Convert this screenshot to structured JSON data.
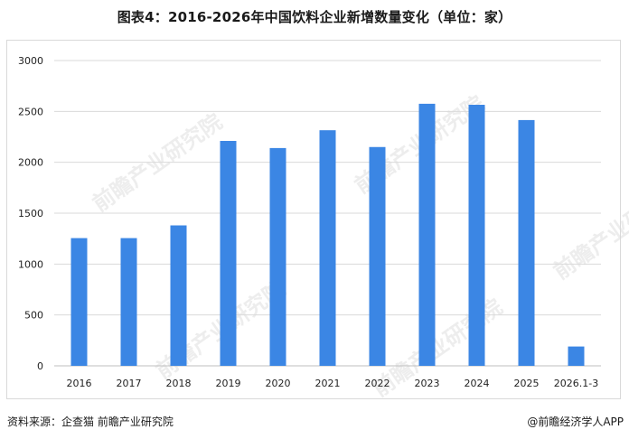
{
  "title": "图表4：2016-2026年中国饮料企业新增数量变化（单位：家）",
  "source": "资料来源：企查猫 前瞻产业研究院",
  "credit": "@前瞻经济学人APP",
  "watermark": "前瞻产业研究院",
  "colors": {
    "bar": "#3b86e4",
    "grid": "#d9d9d9",
    "axis": "#bfbfbf"
  },
  "chart_data": {
    "type": "bar",
    "title": "图表4：2016-2026年中国饮料企业新增数量变化（单位：家）",
    "categories": [
      "2016",
      "2017",
      "2018",
      "2019",
      "2020",
      "2021",
      "2022",
      "2023",
      "2024",
      "2025",
      "2026.1-3"
    ],
    "values": [
      1255,
      1255,
      1380,
      2210,
      2140,
      2315,
      2150,
      2575,
      2565,
      2415,
      190
    ],
    "ylim": [
      0,
      3000
    ],
    "yticks": [
      "0",
      "500",
      "1000",
      "1500",
      "2000",
      "2500",
      "3000"
    ],
    "xlabel": "",
    "ylabel": "",
    "grid": true,
    "legend": "none"
  }
}
